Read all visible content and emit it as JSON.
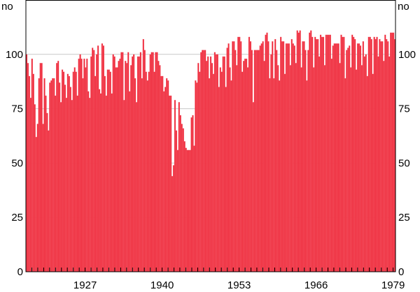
{
  "chart_data": {
    "type": "bar",
    "frequency": "quarterly",
    "xlim": [
      1917,
      1979.4
    ],
    "ylim": [
      0,
      125
    ],
    "grid": true,
    "bar_color": "#ef2839",
    "y_unit_left": "no",
    "y_unit_right": "no",
    "y_ticks": [
      "0",
      "25",
      "50",
      "75",
      "100"
    ],
    "x_tick_labels": [
      "1927",
      "1940",
      "1953",
      "1966",
      "1979"
    ],
    "values": [
      100,
      96,
      90,
      80,
      98,
      91,
      77,
      62,
      68,
      89,
      96,
      96,
      68,
      89,
      81,
      73,
      65,
      87,
      88,
      89,
      89,
      81,
      96,
      97,
      87,
      78,
      93,
      92,
      86,
      80,
      91,
      90,
      85,
      79,
      92,
      94,
      92,
      81,
      98,
      100,
      98,
      89,
      98,
      94,
      98,
      83,
      80,
      99,
      103,
      102,
      90,
      100,
      104,
      84,
      82,
      105,
      104,
      90,
      81,
      93,
      93,
      92,
      82,
      100,
      99,
      94,
      94,
      97,
      98,
      101,
      101,
      79,
      97,
      96,
      101,
      83,
      95,
      99,
      100,
      89,
      78,
      99,
      99,
      101,
      89,
      107,
      102,
      92,
      88,
      92,
      100,
      101,
      101,
      92,
      101,
      101,
      97,
      95,
      90,
      90,
      83,
      85,
      89,
      88,
      81,
      81,
      44,
      49,
      79,
      65,
      56,
      78,
      72,
      68,
      66,
      60,
      57,
      56,
      56,
      56,
      71,
      72,
      58,
      88,
      87,
      96,
      92,
      101,
      102,
      102,
      102,
      97,
      99,
      89,
      99,
      96,
      91,
      101,
      100,
      100,
      85,
      94,
      92,
      99,
      99,
      85,
      103,
      105,
      94,
      88,
      106,
      106,
      102,
      95,
      108,
      108,
      106,
      92,
      97,
      98,
      98,
      94,
      108,
      106,
      102,
      78,
      102,
      102,
      102,
      102,
      104,
      105,
      106,
      97,
      109,
      110,
      106,
      89,
      100,
      106,
      89,
      107,
      102,
      95,
      88,
      108,
      106,
      106,
      91,
      105,
      105,
      105,
      95,
      107,
      105,
      104,
      96,
      111,
      110,
      111,
      94,
      106,
      106,
      102,
      88,
      102,
      110,
      111,
      108,
      94,
      108,
      107,
      107,
      99,
      109,
      108,
      108,
      95,
      109,
      109,
      109,
      109,
      98,
      104,
      105,
      105,
      105,
      105,
      96,
      109,
      108,
      108,
      89,
      102,
      103,
      104,
      94,
      109,
      108,
      107,
      93,
      105,
      105,
      104,
      95,
      106,
      99,
      100,
      90,
      108,
      108,
      107,
      91,
      108,
      107,
      108,
      99,
      107,
      106,
      106,
      97,
      109,
      107,
      106,
      99,
      110,
      110,
      110,
      107
    ]
  }
}
